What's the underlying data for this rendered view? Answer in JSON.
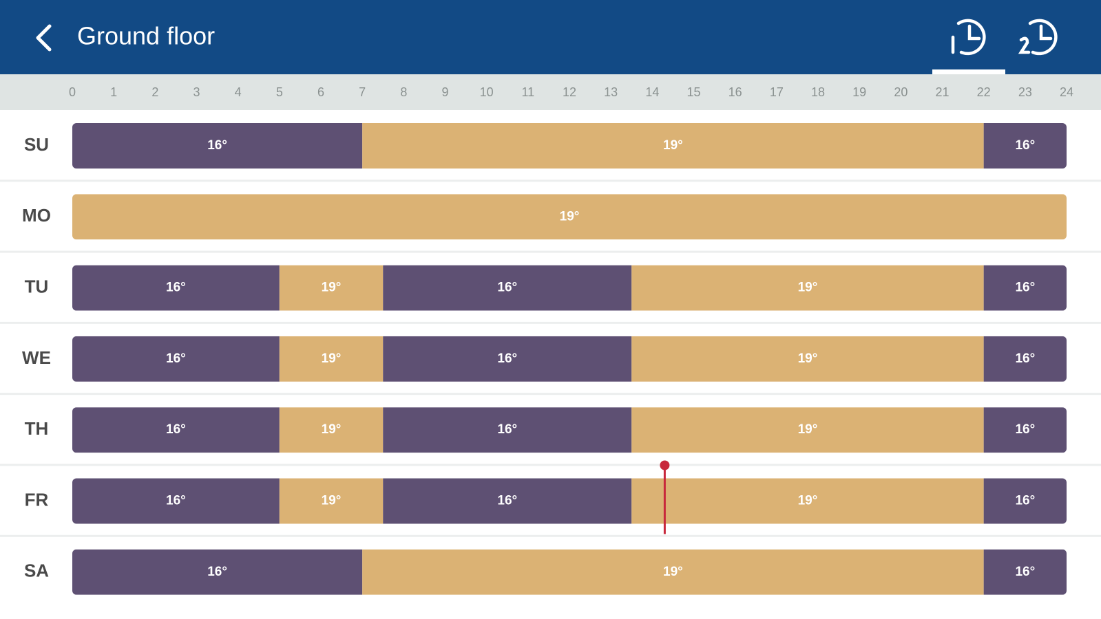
{
  "header": {
    "title": "Ground floor"
  },
  "hours": [
    "0",
    "1",
    "2",
    "3",
    "4",
    "5",
    "6",
    "7",
    "8",
    "9",
    "10",
    "11",
    "12",
    "13",
    "14",
    "15",
    "16",
    "17",
    "18",
    "19",
    "20",
    "21",
    "22",
    "23",
    "24"
  ],
  "palette": {
    "16°": "#5e5073",
    "19°": "#dbb274"
  },
  "current_time": 14.3,
  "days": [
    {
      "label": "SU",
      "segments": [
        {
          "from": 0,
          "to": 7,
          "label": "16°"
        },
        {
          "from": 7,
          "to": 22,
          "label": "19°"
        },
        {
          "from": 22,
          "to": 24,
          "label": "16°"
        }
      ]
    },
    {
      "label": "MO",
      "segments": [
        {
          "from": 0,
          "to": 24,
          "label": "19°"
        }
      ]
    },
    {
      "label": "TU",
      "segments": [
        {
          "from": 0,
          "to": 5,
          "label": "16°"
        },
        {
          "from": 5,
          "to": 7.5,
          "label": "19°"
        },
        {
          "from": 7.5,
          "to": 13.5,
          "label": "16°"
        },
        {
          "from": 13.5,
          "to": 22,
          "label": "19°"
        },
        {
          "from": 22,
          "to": 24,
          "label": "16°"
        }
      ]
    },
    {
      "label": "WE",
      "segments": [
        {
          "from": 0,
          "to": 5,
          "label": "16°"
        },
        {
          "from": 5,
          "to": 7.5,
          "label": "19°"
        },
        {
          "from": 7.5,
          "to": 13.5,
          "label": "16°"
        },
        {
          "from": 13.5,
          "to": 22,
          "label": "19°"
        },
        {
          "from": 22,
          "to": 24,
          "label": "16°"
        }
      ]
    },
    {
      "label": "TH",
      "segments": [
        {
          "from": 0,
          "to": 5,
          "label": "16°"
        },
        {
          "from": 5,
          "to": 7.5,
          "label": "19°"
        },
        {
          "from": 7.5,
          "to": 13.5,
          "label": "16°"
        },
        {
          "from": 13.5,
          "to": 22,
          "label": "19°"
        },
        {
          "from": 22,
          "to": 24,
          "label": "16°"
        }
      ]
    },
    {
      "label": "FR",
      "segments": [
        {
          "from": 0,
          "to": 5,
          "label": "16°"
        },
        {
          "from": 5,
          "to": 7.5,
          "label": "19°"
        },
        {
          "from": 7.5,
          "to": 13.5,
          "label": "16°"
        },
        {
          "from": 13.5,
          "to": 22,
          "label": "19°"
        },
        {
          "from": 22,
          "to": 24,
          "label": "16°"
        }
      ]
    },
    {
      "label": "SA",
      "segments": [
        {
          "from": 0,
          "to": 7,
          "label": "16°"
        },
        {
          "from": 7,
          "to": 22,
          "label": "19°"
        },
        {
          "from": 22,
          "to": 24,
          "label": "16°"
        }
      ]
    }
  ]
}
